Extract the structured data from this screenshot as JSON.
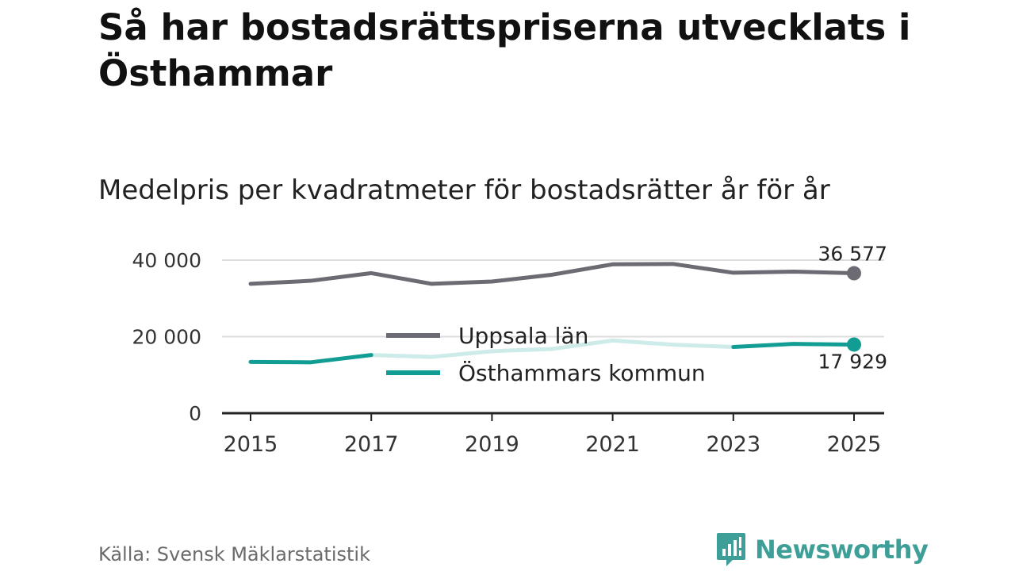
{
  "header": {
    "title": "Så har bostadsrättspriserna utvecklats i Östhammar",
    "subtitle": "Medelpris per kvadratmeter för bostadsrätter år för år"
  },
  "footer": {
    "source": "Källa: Svensk Mäklarstatistik",
    "brand": "Newsworthy",
    "brand_icon": "newsworthy-logo-icon"
  },
  "colors": {
    "uppsala": "#6c6b73",
    "osthammar": "#129d94",
    "osthammar_faded": "#cdebe8",
    "grid": "#dddddd",
    "axis": "#222222",
    "brand": "#3e9f98"
  },
  "chart_data": {
    "type": "line",
    "x": [
      2015,
      2016,
      2017,
      2018,
      2019,
      2020,
      2021,
      2022,
      2023,
      2024,
      2025
    ],
    "xticks": [
      "2015",
      "2017",
      "2019",
      "2021",
      "2023",
      "2025"
    ],
    "yticks": [
      "0",
      "20 000",
      "40 000"
    ],
    "ylim": [
      0,
      40000
    ],
    "series": [
      {
        "name": "Uppsala län",
        "values": [
          33800,
          34600,
          36600,
          33800,
          34400,
          36200,
          38900,
          39000,
          36700,
          37000,
          36577
        ],
        "end_label": "36 577"
      },
      {
        "name": "Östhammars kommun",
        "values": [
          13400,
          13300,
          15200,
          14700,
          16200,
          16800,
          19000,
          17900,
          17300,
          18100,
          17929
        ],
        "end_label": "17 929",
        "faded_range": [
          2017,
          2023
        ]
      }
    ],
    "legend": [
      "Uppsala län",
      "Östhammars kommun"
    ],
    "legend_position": "center",
    "title": "Medelpris per kvadratmeter för bostadsrätter år för år",
    "xlabel": "",
    "ylabel": ""
  }
}
